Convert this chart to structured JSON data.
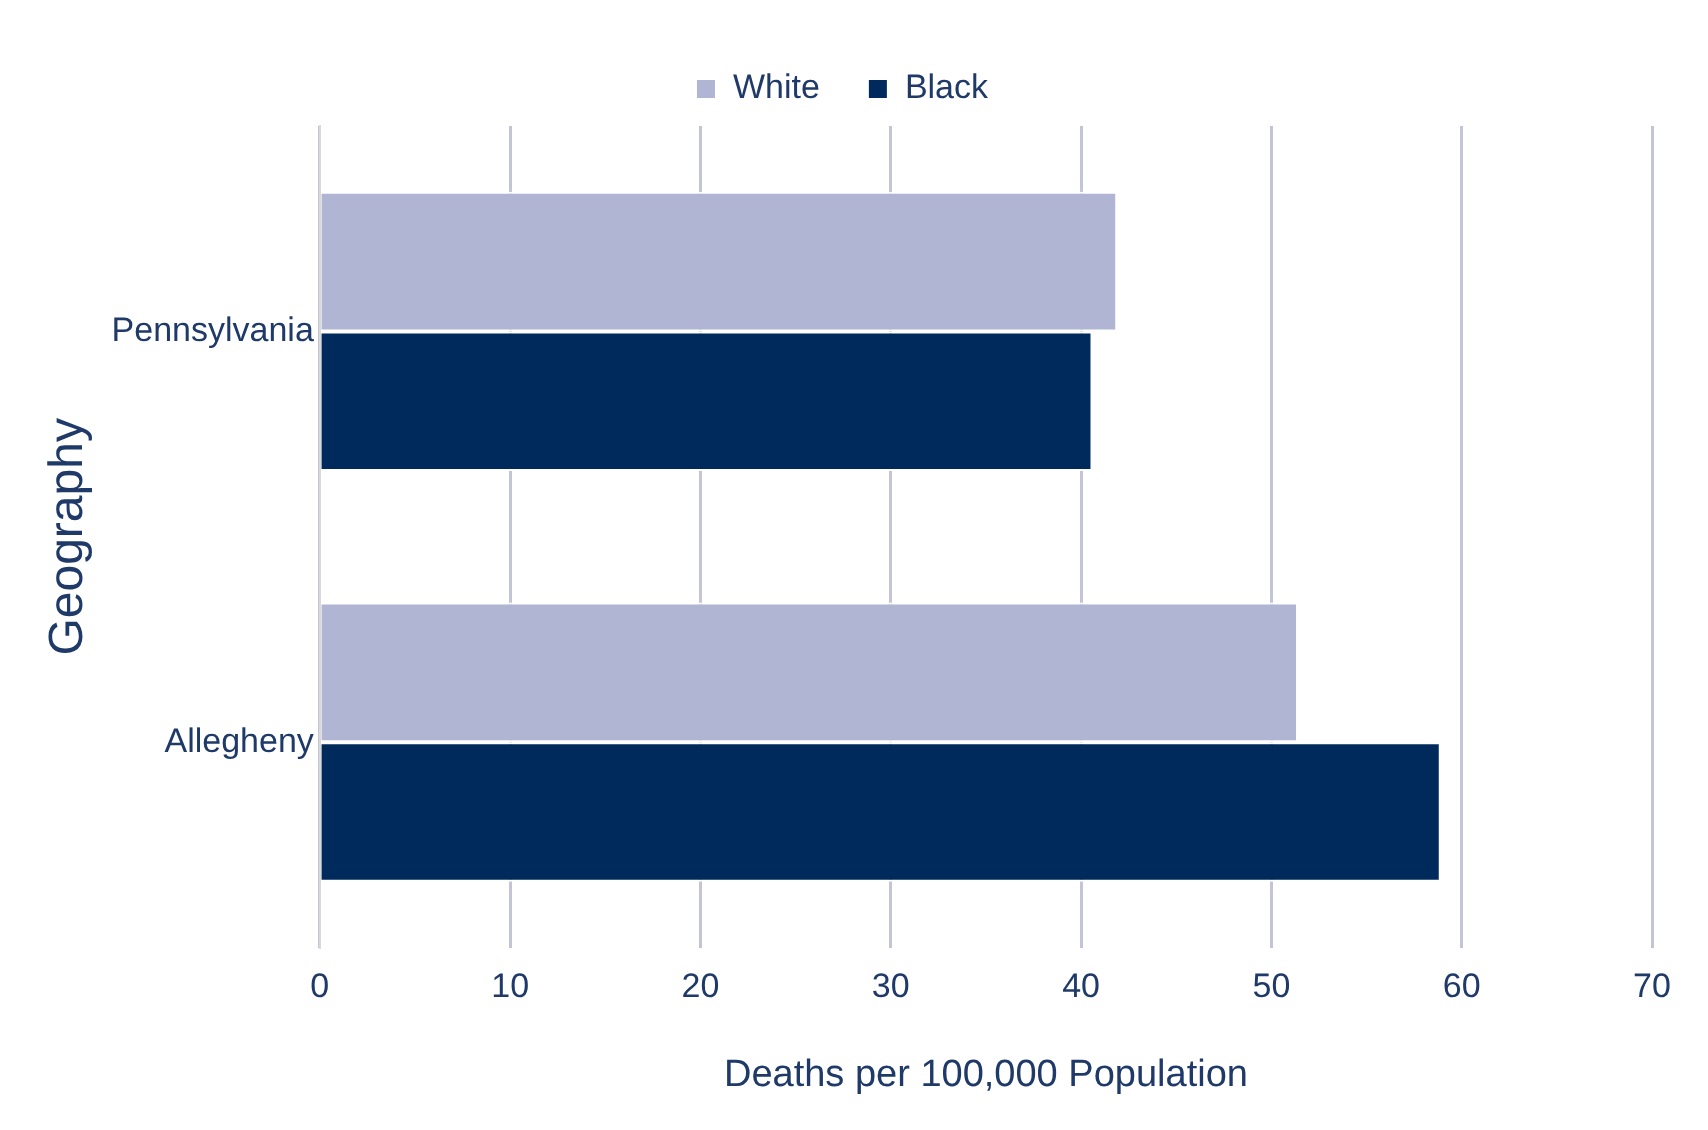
{
  "chart_data": {
    "type": "bar",
    "orientation": "horizontal",
    "xlabel": "Deaths per 100,000 Population",
    "ylabel": "Geography",
    "categories": [
      "Pennsylvania",
      "Allegheny"
    ],
    "series": [
      {
        "name": "White",
        "color": "#b1b5d4",
        "values": [
          41.9,
          51.4
        ]
      },
      {
        "name": "Black",
        "color": "#002a5c",
        "values": [
          40.6,
          58.9
        ]
      }
    ],
    "xlim": [
      0,
      70
    ],
    "xticks": [
      0,
      10,
      20,
      30,
      40,
      50,
      60,
      70
    ],
    "grid": "x",
    "legend": "top"
  }
}
